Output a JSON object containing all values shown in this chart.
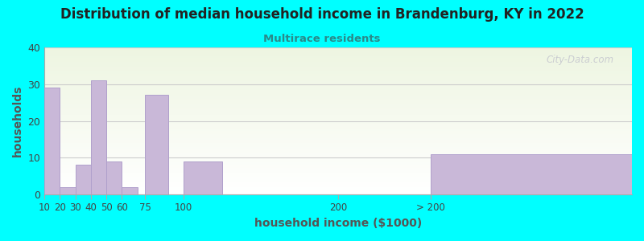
{
  "title": "Distribution of median household income in Brandenburg, KY in 2022",
  "subtitle": "Multirace residents",
  "xlabel": "household income ($1000)",
  "ylabel": "households",
  "background_outer": "#00FFFF",
  "bar_color": "#c9b8d8",
  "bar_edge_color": "#b0a0cc",
  "title_color": "#222222",
  "subtitle_color": "#2a8a8a",
  "axis_label_color": "#555555",
  "tick_label_color": "#444444",
  "watermark": "City-Data.com",
  "categories": [
    "10",
    "20",
    "30",
    "40",
    "50",
    "60",
    "75",
    "100",
    "200",
    "> 200"
  ],
  "values": [
    29,
    2,
    8,
    31,
    9,
    2,
    27,
    9,
    0,
    11
  ],
  "bar_lefts": [
    10,
    20,
    30,
    40,
    50,
    60,
    75,
    100,
    200,
    260
  ],
  "bar_widths": [
    10,
    10,
    10,
    10,
    10,
    10,
    15,
    25,
    0,
    130
  ],
  "xtick_positions": [
    10,
    20,
    30,
    40,
    50,
    60,
    75,
    100,
    200,
    260
  ],
  "xtick_labels": [
    "10",
    "20",
    "30",
    "40",
    "50",
    "60",
    "75",
    "100",
    "200",
    "> 200"
  ],
  "xlim": [
    10,
    390
  ],
  "ylim": [
    0,
    40
  ],
  "yticks": [
    0,
    10,
    20,
    30,
    40
  ],
  "grid_color": "#cccccc",
  "figsize": [
    8.0,
    3.0
  ],
  "dpi": 100
}
